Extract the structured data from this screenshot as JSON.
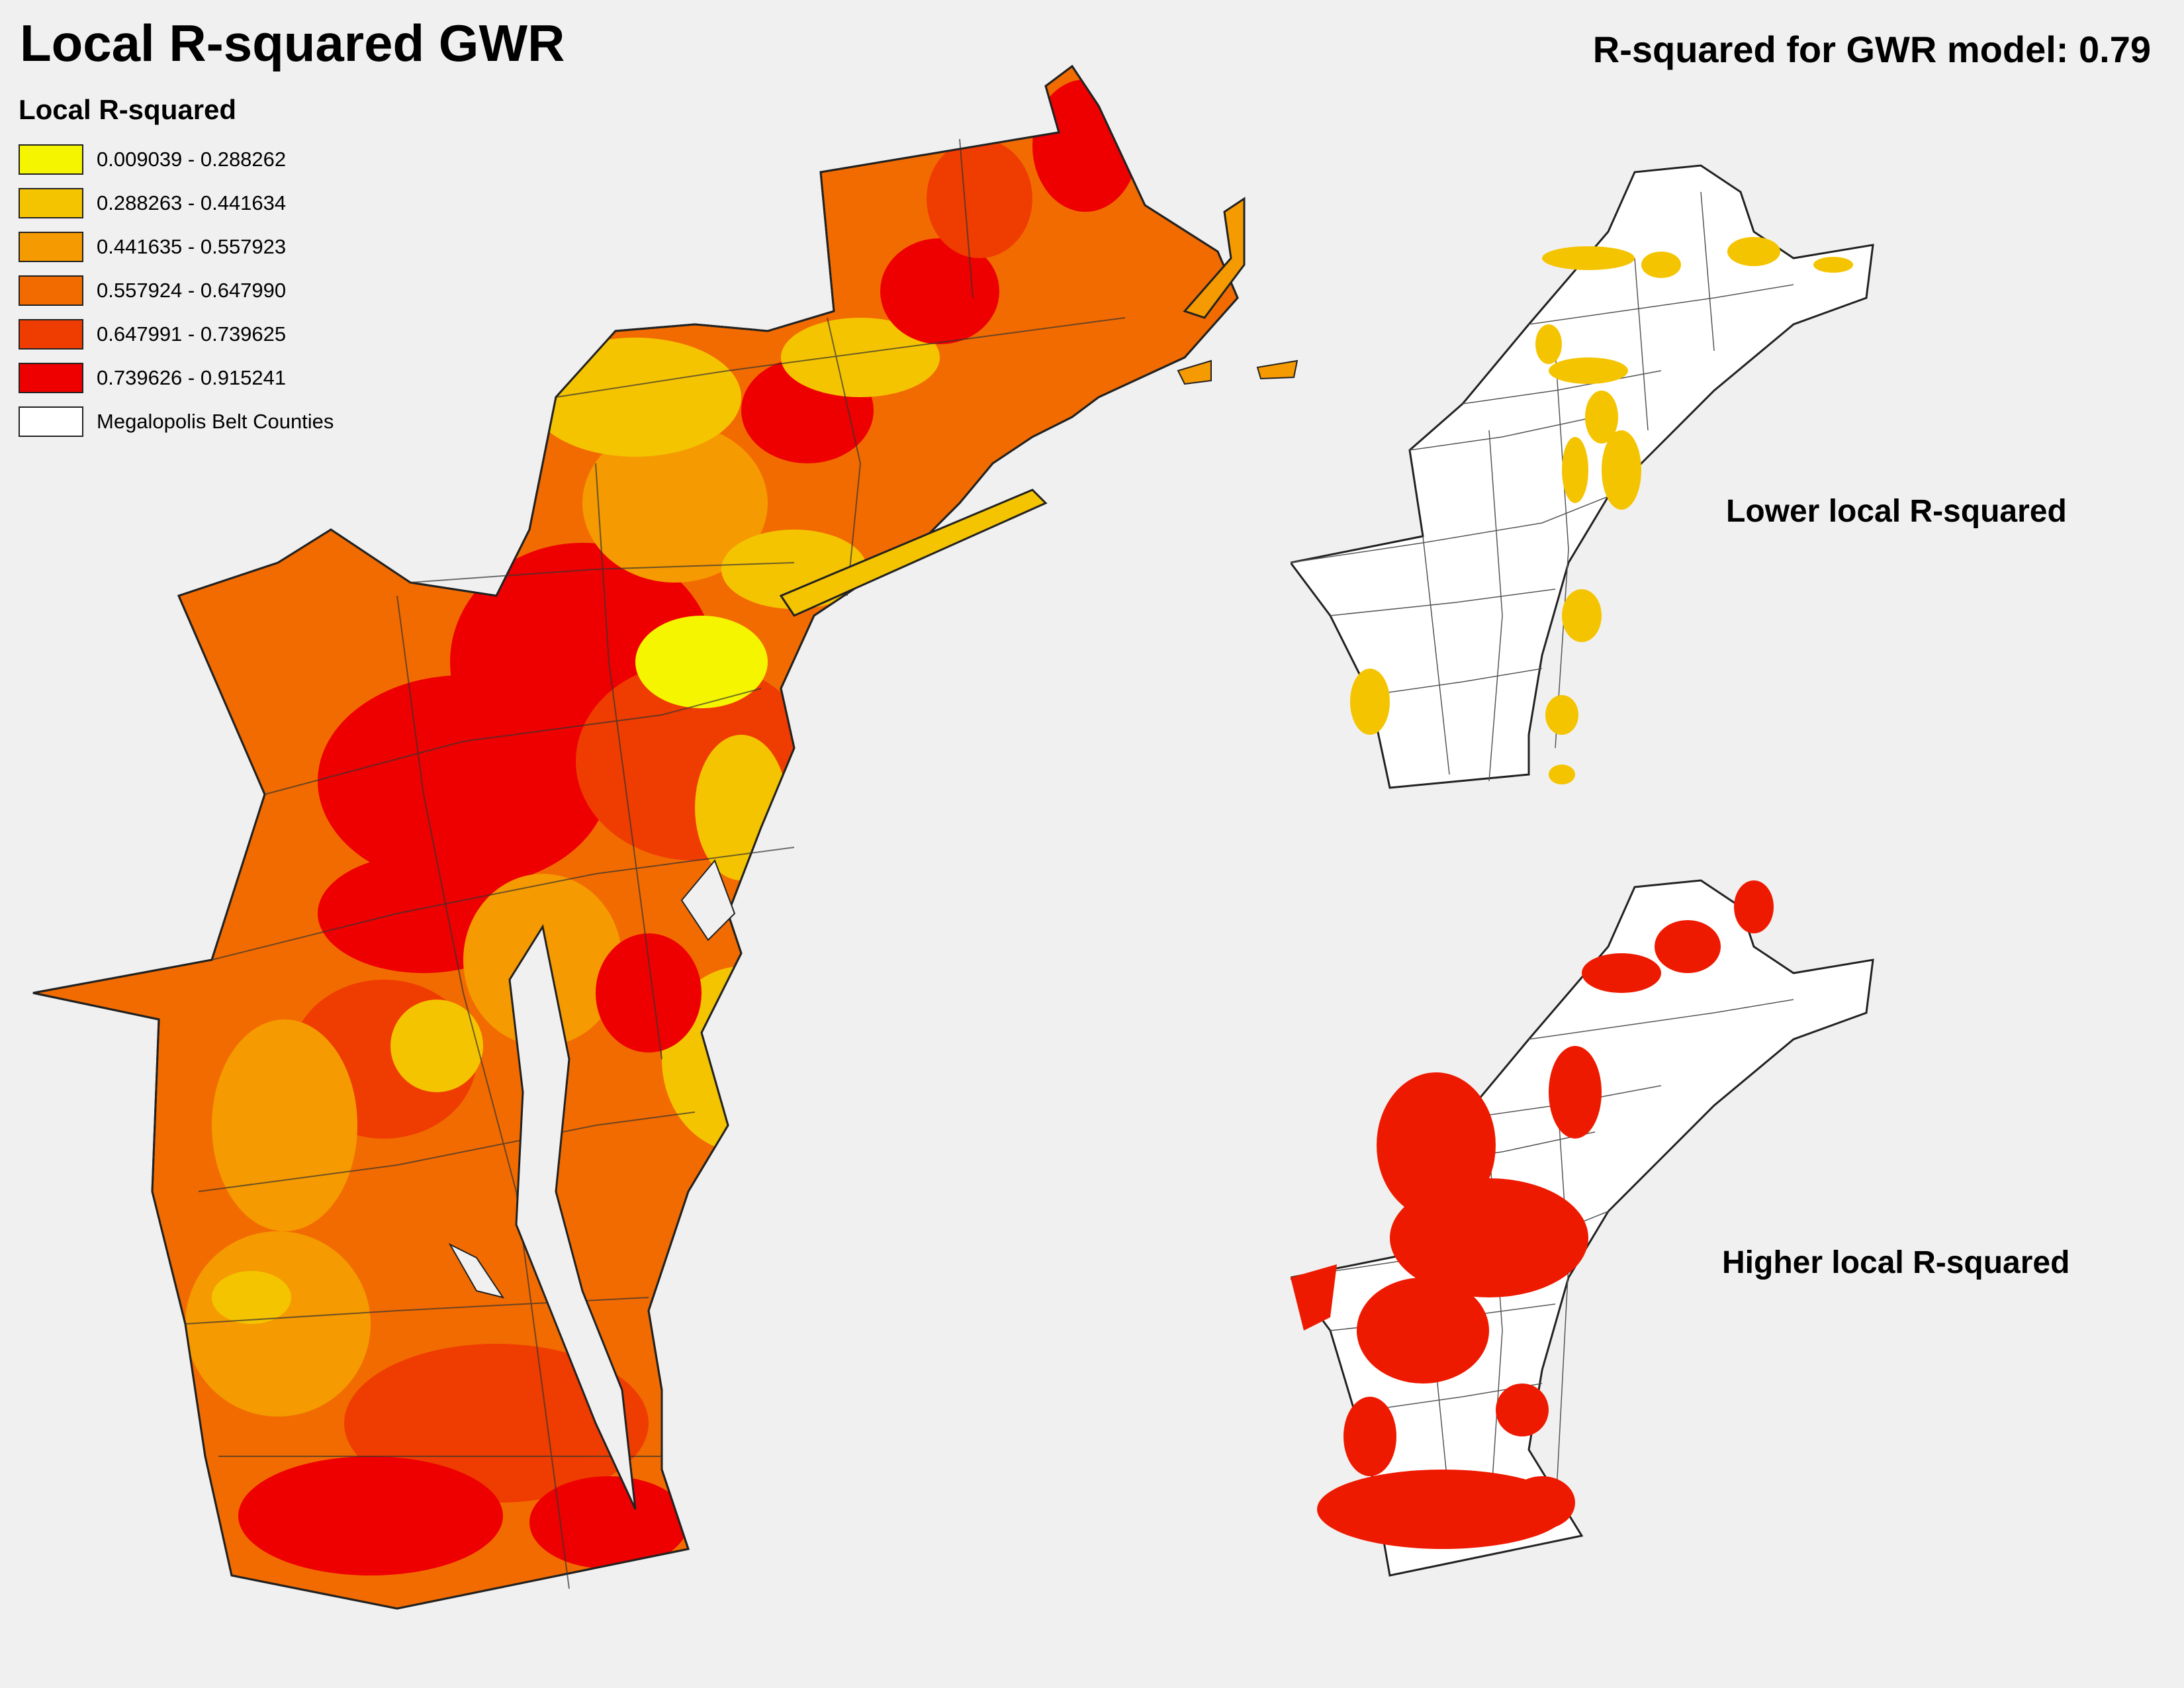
{
  "title": "Local R-squared GWR",
  "overall_r2": "R-squared for GWR model: 0.79",
  "legend": {
    "title": "Local R-squared",
    "classes": [
      {
        "label": "0.009039 - 0.288262",
        "color": "#f5f500"
      },
      {
        "label": "0.288263 - 0.441634",
        "color": "#f5c400"
      },
      {
        "label": "0.441635 - 0.557923",
        "color": "#f59a00"
      },
      {
        "label": "0.557924 - 0.647990",
        "color": "#f26b00"
      },
      {
        "label": "0.647991 - 0.739625",
        "color": "#ef3c00"
      },
      {
        "label": "0.739626 - 0.915241",
        "color": "#ee0000"
      }
    ],
    "outline_label": "Megalopolis Belt Counties",
    "outline_color": "#ffffff"
  },
  "insets": {
    "lower_label": "Lower local R-squared",
    "higher_label": "Higher local R-squared",
    "lower_color": "#f5c400",
    "higher_color": "#ee1a00"
  }
}
